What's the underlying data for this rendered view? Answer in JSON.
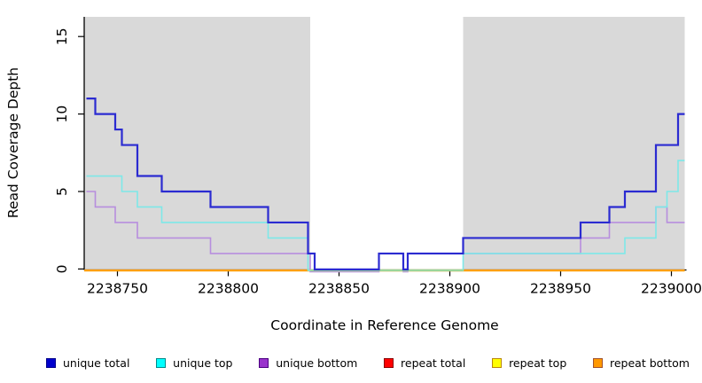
{
  "chart_data": {
    "type": "line",
    "subtype": "step-coverage",
    "title": "",
    "xlabel": "Coordinate in Reference Genome",
    "ylabel": "Read Coverage Depth",
    "x_range": [
      2238735,
      2239006
    ],
    "y_range": [
      0,
      16.3
    ],
    "x_ticks": [
      2238750,
      2238800,
      2238850,
      2238900,
      2238950,
      2239000
    ],
    "y_ticks": [
      0,
      5,
      10,
      15
    ],
    "grid": "off",
    "legend_position": "bottom",
    "shaded_regions": [
      {
        "label": "left-shaded-region",
        "x0": 2238735,
        "x1": 2238837,
        "color": "#d9d9d9"
      },
      {
        "label": "right-shaded-region",
        "x0": 2238906,
        "x1": 2239006,
        "color": "#d9d9d9"
      }
    ],
    "zero_overlay": {
      "x0": 2238837,
      "x1": 2238906,
      "color": "#9bd69a"
    },
    "series": [
      {
        "name": "repeat total",
        "color": "#ee0000",
        "width": 1.5,
        "zero_offset": 2,
        "steps": [
          [
            2238735,
            0
          ]
        ],
        "end": 2239006
      },
      {
        "name": "repeat top",
        "color": "#ffff00",
        "width": 1.5,
        "zero_offset": 2,
        "steps": [
          [
            2238735,
            0
          ]
        ],
        "end": 2239006
      },
      {
        "name": "repeat bottom",
        "color": "#ff9800",
        "width": 2,
        "zero_offset": 1.5,
        "steps": [
          [
            2238735,
            0
          ]
        ],
        "end": 2239006
      },
      {
        "name": "unique bottom",
        "color": "#b78ede",
        "width": 1.6,
        "zero_offset": 3,
        "steps": [
          [
            2238736,
            5
          ],
          [
            2238740,
            4
          ],
          [
            2238749,
            3
          ],
          [
            2238759,
            2
          ],
          [
            2238792,
            1
          ],
          [
            2238837,
            0
          ],
          [
            2238868,
            1
          ],
          [
            2238879,
            0
          ],
          [
            2238881,
            1
          ],
          [
            2238959,
            2
          ],
          [
            2238972,
            3
          ],
          [
            2238993,
            4
          ],
          [
            2238998,
            3
          ]
        ],
        "end": 2239006
      },
      {
        "name": "unique top",
        "color": "#7de8e8",
        "width": 1.6,
        "zero_offset": 1.5,
        "steps": [
          [
            2238736,
            6
          ],
          [
            2238752,
            5
          ],
          [
            2238759,
            4
          ],
          [
            2238770,
            3
          ],
          [
            2238818,
            2
          ],
          [
            2238836,
            0
          ],
          [
            2238906,
            1
          ],
          [
            2238979,
            2
          ],
          [
            2238993,
            4
          ],
          [
            2238998,
            5
          ],
          [
            2239003,
            7
          ]
        ],
        "end": 2239006
      },
      {
        "name": "unique total",
        "color": "#2b2bd1",
        "width": 2.2,
        "zero_offset": 0.5,
        "steps": [
          [
            2238736,
            11
          ],
          [
            2238740,
            10
          ],
          [
            2238749,
            9
          ],
          [
            2238752,
            8
          ],
          [
            2238759,
            6
          ],
          [
            2238770,
            5
          ],
          [
            2238792,
            4
          ],
          [
            2238818,
            3
          ],
          [
            2238836,
            1
          ],
          [
            2238839,
            0
          ],
          [
            2238868,
            1
          ],
          [
            2238879,
            0
          ],
          [
            2238881,
            1
          ],
          [
            2238906,
            2
          ],
          [
            2238959,
            3
          ],
          [
            2238972,
            4
          ],
          [
            2238979,
            5
          ],
          [
            2238993,
            8
          ],
          [
            2239003,
            10
          ]
        ],
        "end": 2239006
      }
    ],
    "legend": [
      {
        "label": "unique total",
        "color": "#0000cd",
        "border": "#00008b"
      },
      {
        "label": "unique top",
        "color": "#00ffff",
        "border": "#008b8b"
      },
      {
        "label": "unique bottom",
        "color": "#9932cc",
        "border": "#4b0082"
      },
      {
        "label": "repeat total",
        "color": "#ff0000",
        "border": "#8b0000"
      },
      {
        "label": "repeat top",
        "color": "#ffff00",
        "border": "#b8860b"
      },
      {
        "label": "repeat bottom",
        "color": "#ff9800",
        "border": "#a0522d"
      }
    ]
  }
}
